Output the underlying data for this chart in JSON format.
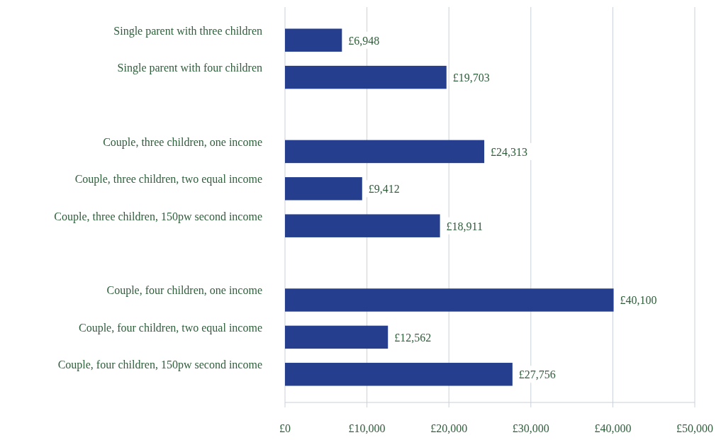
{
  "chart_data": {
    "type": "bar",
    "orientation": "horizontal",
    "categories": [
      "Single parent with three children",
      "Single parent with four children",
      null,
      "Couple, three children, one income",
      "Couple, three children, two equal income",
      "Couple, three children, 150pw second income",
      null,
      "Couple, four children, one income",
      "Couple, four children, two equal income",
      "Couple, four children, 150pw second income"
    ],
    "values": [
      6948,
      19703,
      null,
      24313,
      9412,
      18911,
      null,
      40100,
      12562,
      27756
    ],
    "value_labels": [
      "£6,948",
      "£19,703",
      null,
      "£24,313",
      "£9,412",
      "£18,911",
      null,
      "£40,100",
      "£12,562",
      "£27,756"
    ],
    "color": "#253f8e",
    "xlim": [
      0,
      50000
    ],
    "xticks": [
      {
        "value": 0,
        "label": "£0"
      },
      {
        "value": 10000,
        "label": "£10,000"
      },
      {
        "value": 20000,
        "label": "£20,000"
      },
      {
        "value": 30000,
        "label": "£30,000"
      },
      {
        "value": 40000,
        "label": "£40,000"
      },
      {
        "value": 50000,
        "label": "£50,000"
      }
    ],
    "grid": "x"
  }
}
